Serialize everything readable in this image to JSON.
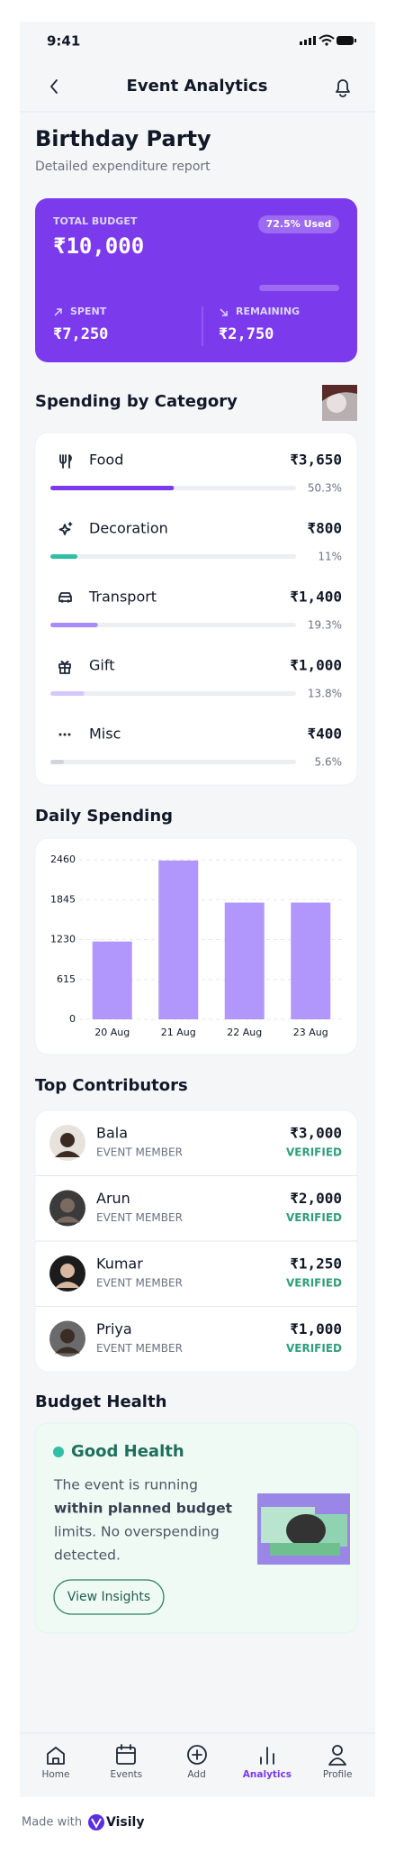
{
  "status_bar": {
    "time": "9:41"
  },
  "header": {
    "title": "Event Analytics"
  },
  "event": {
    "name": "Birthday Party",
    "subtitle": "Detailed expenditure report"
  },
  "budget_card": {
    "label": "TOTAL BUDGET",
    "amount": "₹10,000",
    "usage_badge": "72.5% Used",
    "spent_label": "SPENT",
    "spent": "₹7,250",
    "remaining_label": "REMAINING",
    "remaining": "₹2,750"
  },
  "categories_section": {
    "title": "Spending by Category",
    "items": [
      {
        "name": "Food",
        "amount": "₹3,650",
        "share": {
          "value": 50.3,
          "label": "50.3%"
        },
        "color": "#7c3aed"
      },
      {
        "name": "Decoration",
        "amount": "₹800",
        "share": {
          "value": 11,
          "label": "11%"
        },
        "color": "#2ebfa5"
      },
      {
        "name": "Transport",
        "amount": "₹1,400",
        "share": {
          "value": 19.3,
          "label": "19.3%"
        },
        "color": "#a78bfa"
      },
      {
        "name": "Gift",
        "amount": "₹1,000",
        "share": {
          "value": 13.8,
          "label": "13.8%"
        },
        "color": "#d4c8fb"
      },
      {
        "name": "Misc",
        "amount": "₹400",
        "share": {
          "value": 5.6,
          "label": "5.6%"
        },
        "color": "#d1d5db"
      }
    ]
  },
  "chart_data": {
    "type": "bar",
    "title": "Daily Spending",
    "categories": [
      "20 Aug",
      "21 Aug",
      "22 Aug",
      "23 Aug"
    ],
    "values": [
      1200,
      2450,
      1800,
      1800
    ],
    "color": "#b197fc",
    "ylim": [
      0,
      2460
    ],
    "yticks": [
      0,
      615,
      1230,
      1845,
      2460
    ],
    "grid": true
  },
  "contributors": {
    "title": "Top Contributors",
    "items": [
      {
        "name": "Bala",
        "role": "EVENT MEMBER",
        "amount": "₹3,000",
        "status": "VERIFIED"
      },
      {
        "name": "Arun",
        "role": "EVENT MEMBER",
        "amount": "₹2,000",
        "status": "VERIFIED"
      },
      {
        "name": "Kumar",
        "role": "EVENT MEMBER",
        "amount": "₹1,250",
        "status": "VERIFIED"
      },
      {
        "name": "Priya",
        "role": "EVENT MEMBER",
        "amount": "₹1,000",
        "status": "VERIFIED"
      }
    ]
  },
  "budget_health": {
    "title": "Budget Health",
    "status": "Good Health",
    "message_lines": [
      "The event is running",
      "within planned budget",
      "limits. No overspending",
      "detected."
    ],
    "button": "View Insights"
  },
  "nav": {
    "items": [
      "Home",
      "Events",
      "Add",
      "Analytics",
      "Profile"
    ]
  },
  "footer": {
    "made_with": "Made with",
    "brand": "Visily"
  }
}
